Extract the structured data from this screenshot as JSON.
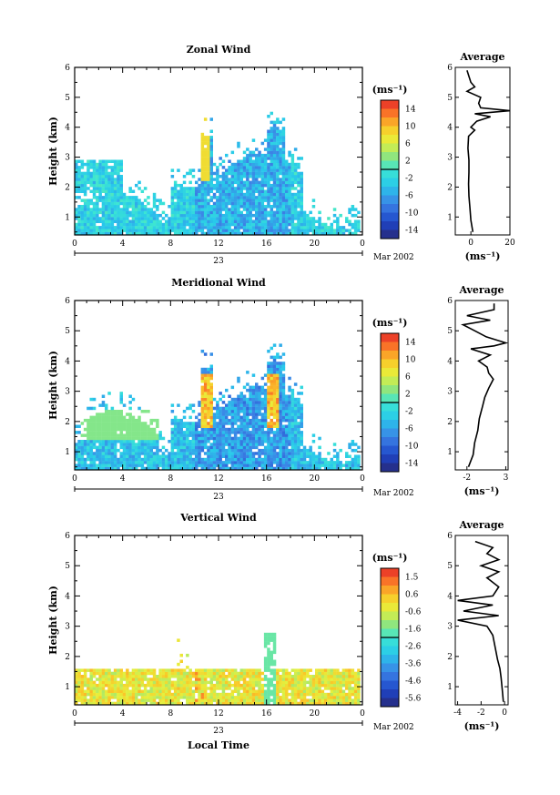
{
  "common": {
    "x_ticks": [
      "0",
      "4",
      "8",
      "12",
      "16",
      "20",
      "0"
    ],
    "height_ticks": [
      "1",
      "2",
      "3",
      "4",
      "5",
      "6"
    ],
    "day_label": "23",
    "month_label": "Mar 2002",
    "unit_label": "(ms⁻¹)",
    "height_axis_label": "Height (km)",
    "average_title": "Average",
    "time_axis_label": "Local Time"
  },
  "chart_data": [
    {
      "type": "heatmap",
      "title": "Zonal Wind",
      "xlabel": "",
      "ylabel": "Height (km)",
      "xlim": [
        0,
        24
      ],
      "ylim": [
        0.4,
        6
      ],
      "colorbar": {
        "min": -15,
        "max": 15,
        "ticks": [
          "14",
          "10",
          "6",
          "2",
          "-2",
          "-6",
          "-10",
          "-14"
        ]
      },
      "average_profile": {
        "xlim": [
          -8,
          20
        ],
        "x_ticks": [
          "0",
          "20"
        ],
        "xlabel": "(ms⁻¹)",
        "heights": [
          0.5,
          0.9,
          1.3,
          1.7,
          2.1,
          2.5,
          2.9,
          3.3,
          3.7,
          3.9,
          4.0,
          4.2,
          4.35,
          4.45,
          4.55,
          4.65,
          4.8,
          5.0,
          5.2,
          5.35,
          5.5,
          5.7,
          5.9
        ],
        "values": [
          1.0,
          0.0,
          -0.5,
          -1.0,
          -1.2,
          -1.0,
          -1.0,
          -1.5,
          -1.2,
          2.0,
          0.0,
          3.0,
          10.0,
          2.0,
          20.0,
          5.0,
          4.0,
          5.0,
          -2.0,
          2.0,
          0.0,
          -1.0,
          -2.0
        ]
      }
    },
    {
      "type": "heatmap",
      "title": "Meridional Wind",
      "xlabel": "",
      "ylabel": "Height (km)",
      "xlim": [
        0,
        24
      ],
      "ylim": [
        0.4,
        6
      ],
      "colorbar": {
        "min": -15,
        "max": 15,
        "ticks": [
          "14",
          "10",
          "6",
          "2",
          "-2",
          "-6",
          "-10",
          "-14"
        ]
      },
      "average_profile": {
        "xlim": [
          -3.5,
          3.3
        ],
        "x_ticks": [
          "-2",
          "3"
        ],
        "xlabel": "(ms⁻¹)",
        "heights": [
          0.5,
          0.9,
          1.3,
          1.7,
          2.1,
          2.5,
          2.8,
          3.1,
          3.4,
          3.6,
          3.8,
          4.0,
          4.2,
          4.4,
          4.5,
          4.6,
          4.8,
          5.0,
          5.2,
          5.35,
          5.5,
          5.7,
          5.9
        ],
        "values": [
          -1.8,
          -1.2,
          -1.0,
          -0.6,
          -0.4,
          0.0,
          0.3,
          0.8,
          1.4,
          0.8,
          0.6,
          -0.5,
          1.0,
          -1.5,
          1.5,
          3.0,
          0.5,
          -1.0,
          -2.5,
          1.0,
          -2.0,
          1.5,
          1.5
        ]
      }
    },
    {
      "type": "heatmap",
      "title": "Vertical Wind",
      "xlabel": "Local Time",
      "ylabel": "Height (km)",
      "xlim": [
        0,
        24
      ],
      "ylim": [
        0.4,
        6
      ],
      "colorbar": {
        "min": -6,
        "max": 2,
        "ticks": [
          "1.5",
          "0.6",
          "-0.6",
          "-1.6",
          "-2.6",
          "-3.6",
          "-4.6",
          "-5.6"
        ]
      },
      "average_profile": {
        "xlim": [
          -4.2,
          0.3
        ],
        "x_ticks": [
          "-4",
          "-2",
          "0"
        ],
        "xlabel": "(ms⁻¹)",
        "heights": [
          0.5,
          0.9,
          1.3,
          1.6,
          1.9,
          2.3,
          2.7,
          3.0,
          3.2,
          3.35,
          3.5,
          3.7,
          3.85,
          4.0,
          4.3,
          4.6,
          4.8,
          5.0,
          5.2,
          5.4,
          5.6,
          5.8
        ],
        "values": [
          -0.1,
          -0.2,
          -0.3,
          -0.4,
          -0.6,
          -0.8,
          -1.0,
          -1.5,
          -4.0,
          -0.5,
          -3.5,
          -1.0,
          -4.0,
          -1.0,
          -0.5,
          -1.5,
          -0.5,
          -2.0,
          -0.5,
          -1.5,
          -1.0,
          -2.5
        ]
      }
    }
  ]
}
